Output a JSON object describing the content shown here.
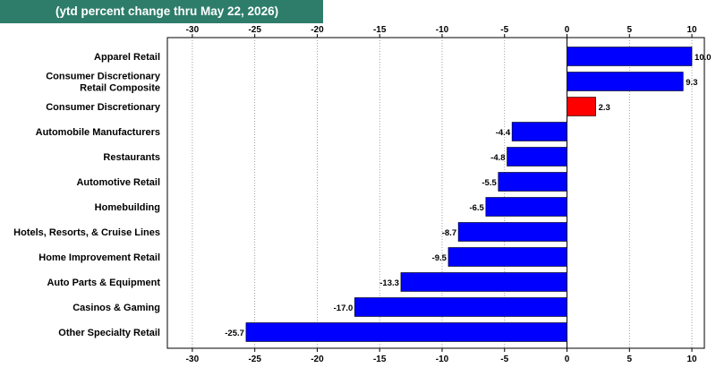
{
  "title": "(ytd percent change thru May 22, 2026)",
  "colors": {
    "title_bg": "#2e7d6b",
    "bar": "#0000ff",
    "highlight": "#ff0000"
  },
  "chart_data": {
    "type": "bar",
    "orientation": "horizontal",
    "title": "(ytd percent change thru May 22, 2026)",
    "xlim": [
      -32,
      11
    ],
    "xticks": [
      -30,
      -25,
      -20,
      -15,
      -10,
      -5,
      0,
      5,
      10
    ],
    "grid": true,
    "categories": [
      [
        "Apparel Retail"
      ],
      [
        "Consumer Discretionary",
        "Retail Composite"
      ],
      [
        "Consumer Discretionary"
      ],
      [
        "Automobile Manufacturers"
      ],
      [
        "Restaurants"
      ],
      [
        "Automotive Retail"
      ],
      [
        "Homebuilding"
      ],
      [
        "Hotels, Resorts, & Cruise Lines"
      ],
      [
        "Home Improvement Retail"
      ],
      [
        "Auto Parts & Equipment"
      ],
      [
        "Casinos & Gaming"
      ],
      [
        "Other Specialty Retail"
      ]
    ],
    "values": [
      10.0,
      9.3,
      2.3,
      -4.4,
      -4.8,
      -5.5,
      -6.5,
      -8.7,
      -9.5,
      -13.3,
      -17.0,
      -25.7
    ],
    "value_labels": [
      "10.0",
      "9.3",
      "2.3",
      "-4.4",
      "-4.8",
      "-5.5",
      "-6.5",
      "-8.7",
      "-9.5",
      "-13.3",
      "-17.0",
      "-25.7"
    ],
    "highlight_index": 2
  }
}
